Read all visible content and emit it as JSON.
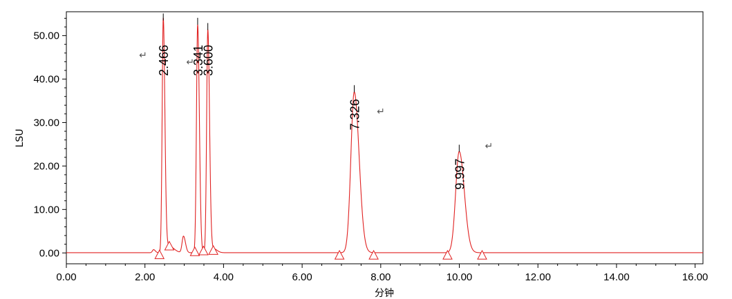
{
  "chart_data": {
    "type": "line",
    "xlabel": "分钟",
    "ylabel": "LSU",
    "xlim": [
      0,
      16.2
    ],
    "ylim": [
      -2.5,
      55.5
    ],
    "x_ticks": [
      "0.00",
      "2.00",
      "4.00",
      "6.00",
      "8.00",
      "10.00",
      "12.00",
      "14.00",
      "16.00"
    ],
    "x_tick_values": [
      0,
      2,
      4,
      6,
      8,
      10,
      12,
      14,
      16
    ],
    "y_ticks": [
      "0.00",
      "10.00",
      "20.00",
      "30.00",
      "40.00",
      "50.00"
    ],
    "y_tick_values": [
      0,
      10,
      20,
      30,
      40,
      50
    ],
    "series_color": "#e02020",
    "baseline": 0.05,
    "peaks": [
      {
        "rt": 2.466,
        "label": "2.466",
        "height": 53.5,
        "width": 0.028
      },
      {
        "rt": 3.341,
        "label": "3.341",
        "height": 52.5,
        "width": 0.03
      },
      {
        "rt": 3.6,
        "label": "3.600",
        "height": 51.3,
        "width": 0.03
      },
      {
        "rt": 7.326,
        "label": "7.326",
        "height": 37.0,
        "width": 0.085
      },
      {
        "rt": 9.997,
        "label": "9.997",
        "height": 23.3,
        "width": 0.09
      }
    ],
    "minor_peaks": [
      {
        "rt": 2.22,
        "height": 0.7,
        "width": 0.03
      },
      {
        "rt": 2.6,
        "height": 1.6,
        "width": 0.09
      },
      {
        "rt": 2.98,
        "height": 3.8,
        "width": 0.035
      },
      {
        "rt": 3.75,
        "height": 0.9,
        "width": 0.06
      }
    ],
    "integration_marks": [
      {
        "x": 2.37,
        "y": -0.4
      },
      {
        "x": 2.62,
        "y": 1.6
      },
      {
        "x": 3.27,
        "y": 0.3
      },
      {
        "x": 3.49,
        "y": 0.5
      },
      {
        "x": 3.74,
        "y": 0.6
      },
      {
        "x": 6.95,
        "y": -0.5
      },
      {
        "x": 7.82,
        "y": -0.5
      },
      {
        "x": 9.7,
        "y": -0.5
      },
      {
        "x": 10.58,
        "y": -0.5
      }
    ],
    "return_marks": [
      {
        "x": 1.85,
        "y": 44.8
      },
      {
        "x": 3.05,
        "y": 43.2
      },
      {
        "x": 7.9,
        "y": 31.8
      },
      {
        "x": 10.65,
        "y": 23.9
      }
    ],
    "return_symbol": "↵"
  }
}
